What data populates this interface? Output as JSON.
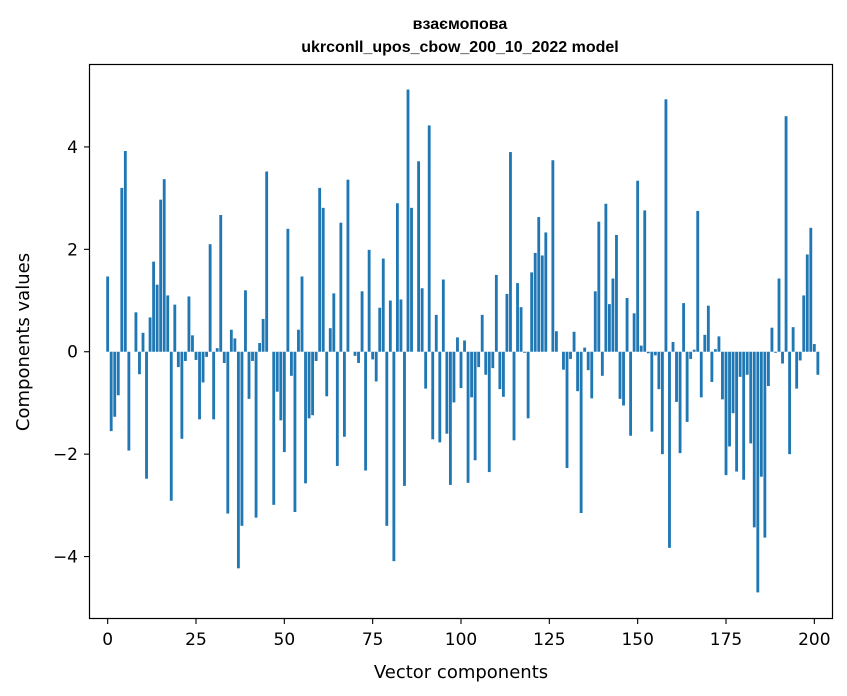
{
  "chart_data": {
    "type": "bar",
    "title": "взаємопова",
    "subtitle": "ukrconll_upos_cbow_200_10_2022 model",
    "xlabel": "Vector components",
    "ylabel": "Components values",
    "xlim": [
      -5,
      205
    ],
    "ylim": [
      -5.2,
      5.6
    ],
    "xticks": [
      0,
      25,
      50,
      75,
      100,
      125,
      150,
      175,
      200
    ],
    "xtick_labels": [
      "0",
      "25",
      "50",
      "75",
      "100",
      "125",
      "150",
      "175",
      "200"
    ],
    "yticks": [
      -4,
      -2,
      0,
      2,
      4
    ],
    "ytick_labels": [
      "−4",
      "−2",
      "0",
      "2",
      "4"
    ],
    "bar_color": "#1f77b4",
    "grid": false,
    "values": [
      1.47,
      -1.55,
      -1.27,
      -0.85,
      3.2,
      3.92,
      -1.93,
      0.0,
      0.77,
      -0.44,
      0.37,
      -2.48,
      0.67,
      1.76,
      1.31,
      2.97,
      3.37,
      1.1,
      -2.91,
      0.92,
      -0.3,
      -1.7,
      -0.18,
      1.08,
      0.32,
      -0.16,
      -1.32,
      -0.6,
      -0.1,
      2.1,
      -1.32,
      0.07,
      2.67,
      -0.22,
      -3.16,
      0.43,
      0.26,
      -4.23,
      -3.4,
      1.2,
      -0.92,
      -0.18,
      -3.24,
      0.17,
      0.64,
      3.52,
      0.0,
      -2.99,
      -0.78,
      -1.34,
      -1.96,
      2.4,
      -0.47,
      -3.13,
      0.43,
      1.47,
      -2.57,
      -1.3,
      -1.24,
      -0.18,
      3.2,
      2.81,
      -0.87,
      0.46,
      1.14,
      -2.23,
      2.52,
      -1.66,
      3.36,
      0.0,
      -0.08,
      -0.22,
      1.18,
      -2.32,
      1.99,
      -0.15,
      -0.58,
      0.86,
      1.82,
      -3.4,
      1.0,
      -4.09,
      2.9,
      1.02,
      -2.62,
      5.12,
      2.81,
      0.0,
      3.72,
      1.24,
      -0.72,
      4.42,
      -1.71,
      0.72,
      -1.77,
      1.41,
      -1.6,
      -2.6,
      -0.99,
      0.28,
      -0.71,
      0.22,
      -2.56,
      -0.89,
      -2.12,
      -0.3,
      0.72,
      -0.45,
      -2.35,
      -0.32,
      1.5,
      -0.73,
      -0.88,
      1.13,
      3.9,
      -1.73,
      1.34,
      0.87,
      -0.02,
      -1.3,
      1.55,
      1.93,
      2.63,
      1.88,
      2.33,
      0.0,
      3.74,
      0.4,
      0.0,
      -0.35,
      -2.27,
      -0.14,
      0.39,
      -0.77,
      -3.15,
      0.08,
      -0.36,
      -0.91,
      1.18,
      2.54,
      -0.47,
      2.89,
      0.93,
      1.43,
      2.28,
      -0.92,
      -1.05,
      1.05,
      -1.64,
      0.75,
      3.34,
      0.12,
      2.76,
      -0.03,
      -1.56,
      -0.07,
      -0.73,
      -2.0,
      4.93,
      -3.83,
      0.19,
      -0.98,
      -1.98,
      0.95,
      -1.37,
      -0.14,
      0.04,
      2.75,
      -0.89,
      0.33,
      0.9,
      -0.59,
      0.05,
      0.3,
      -0.93,
      -2.41,
      -1.85,
      -1.2,
      -2.34,
      -0.49,
      -2.5,
      -0.45,
      -1.79,
      -3.43,
      -4.7,
      -2.44,
      -3.63,
      -0.67,
      0.47,
      -0.02,
      1.43,
      -0.23,
      4.6,
      -2.0,
      0.48,
      -0.72,
      -0.17,
      1.1,
      1.9,
      2.42,
      0.15,
      -0.45
    ]
  }
}
